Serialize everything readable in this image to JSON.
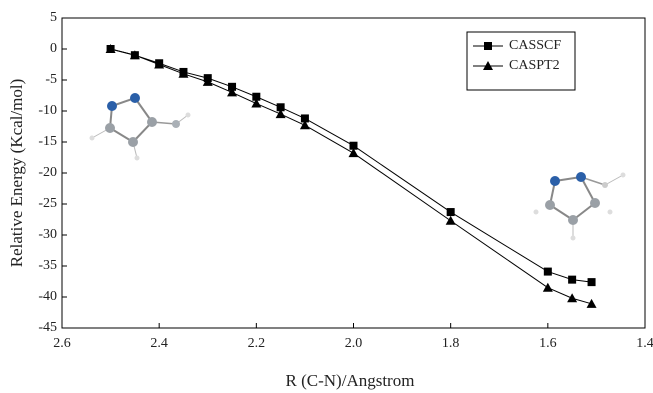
{
  "chart_data": {
    "type": "line",
    "x_label": "R (C-N)/Angstrom",
    "y_label": "Relative Energy (Kcal/mol)",
    "x": [
      2.5,
      2.45,
      2.4,
      2.35,
      2.3,
      2.25,
      2.2,
      2.15,
      2.1,
      2.0,
      1.8,
      1.6,
      1.55,
      1.51
    ],
    "series": [
      {
        "name": "CASSCF",
        "color": "#000000",
        "marker": "square",
        "values": [
          0,
          -1,
          -2.3,
          -3.7,
          -4.7,
          -6.1,
          -7.7,
          -9.4,
          -11.2,
          -15.6,
          -26.3,
          -35.9,
          -37.2,
          -37.6
        ]
      },
      {
        "name": "CASPT2",
        "color": "#000000",
        "marker": "triangle",
        "values": [
          0,
          -1,
          -2.5,
          -4,
          -5.3,
          -7,
          -8.8,
          -10.5,
          -12.3,
          -16.8,
          -27.7,
          -38.5,
          -40.2,
          -41.1
        ]
      }
    ],
    "xlim": [
      2.6,
      1.4
    ],
    "xticks": [
      2.6,
      2.4,
      2.2,
      {
        "value": 2,
        "label": "2.0"
      },
      1.8,
      1.6,
      1.4
    ],
    "ylim": [
      5,
      -45
    ],
    "yticks": [
      5,
      0,
      -5,
      -10,
      -15,
      -20,
      -25,
      -30,
      -35,
      -40,
      -45
    ],
    "legend": "upper right"
  }
}
